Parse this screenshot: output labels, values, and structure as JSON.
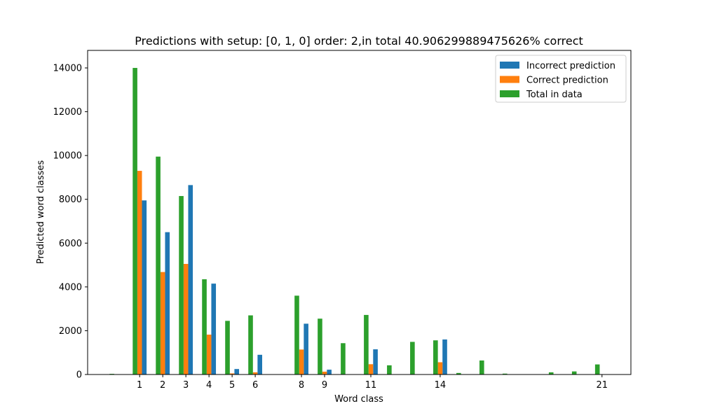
{
  "chart_data": {
    "type": "bar",
    "title": "Predictions with setup: [0, 1, 0] order: 2,in total 40.906299889475626% correct",
    "xlabel": "Word class",
    "ylabel": "Predicted word classes",
    "ylim": [
      0,
      14800
    ],
    "xlim": [
      -1.25,
      22.25
    ],
    "yticks": [
      0,
      2000,
      4000,
      6000,
      8000,
      10000,
      12000,
      14000
    ],
    "xticks": [
      1,
      2,
      3,
      4,
      5,
      6,
      8,
      9,
      11,
      14,
      21
    ],
    "legend_position": "top-right",
    "x": [
      0,
      1,
      2,
      3,
      4,
      5,
      6,
      7,
      8,
      9,
      10,
      11,
      12,
      13,
      14,
      15,
      16,
      17,
      18,
      19,
      20,
      21
    ],
    "series": [
      {
        "name": "Incorrect prediction",
        "color": "#1f77b4",
        "offset": 0.2,
        "values": [
          0,
          7950,
          6500,
          8650,
          4150,
          250,
          900,
          0,
          2320,
          220,
          0,
          1150,
          0,
          0,
          1600,
          0,
          0,
          0,
          0,
          0,
          0,
          0
        ]
      },
      {
        "name": "Correct prediction",
        "color": "#ff7f0e",
        "offset": 0,
        "values": [
          0,
          9300,
          4680,
          5050,
          1820,
          50,
          100,
          0,
          1140,
          130,
          0,
          470,
          0,
          0,
          560,
          0,
          0,
          0,
          0,
          0,
          0,
          0
        ]
      },
      {
        "name": "Total in data",
        "color": "#2ca02c",
        "offset": -0.2,
        "values": [
          30,
          14000,
          9950,
          8150,
          4350,
          2450,
          2700,
          0,
          3600,
          2550,
          1430,
          2720,
          420,
          1490,
          1560,
          70,
          640,
          40,
          0,
          100,
          140,
          460
        ]
      }
    ]
  }
}
